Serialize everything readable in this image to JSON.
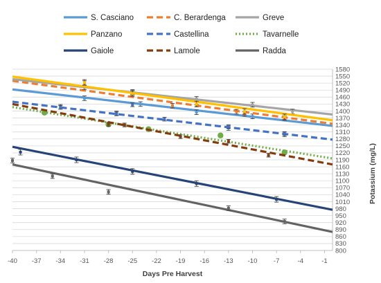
{
  "chart_data": {
    "type": "line",
    "xlabel": "Days Pre Harvest",
    "ylabel": "Potassium  (mg/L)",
    "xlim": [
      -40,
      0
    ],
    "ylim": [
      800,
      1580
    ],
    "x_ticks": [
      -40,
      -37,
      -34,
      -31,
      -28,
      -25,
      -22,
      -19,
      -16,
      -13,
      -10,
      -7,
      -4,
      -1
    ],
    "x_tick_labels": [
      "-40",
      "-37",
      "-34",
      "-31",
      "-28",
      "-25",
      "-22",
      "-19",
      "-16",
      "-13",
      "-10",
      "-7",
      "-4",
      "-1"
    ],
    "y_ticks": [
      800,
      830,
      860,
      890,
      920,
      950,
      980,
      1010,
      1040,
      1070,
      1100,
      1130,
      1160,
      1190,
      1220,
      1250,
      1280,
      1310,
      1340,
      1370,
      1400,
      1430,
      1460,
      1490,
      1520,
      1550,
      1580
    ],
    "y_tick_labels": [
      "800",
      "830",
      "860",
      "890",
      "920",
      "950",
      "980",
      "1010",
      "1040",
      "1070",
      "1100",
      "1130",
      "1160",
      "1190",
      "1220",
      "1250",
      "1280",
      "1310",
      "1340",
      "1370",
      "1400",
      "1430",
      "1460",
      "1490",
      "1520",
      "1550",
      "1580"
    ],
    "grid": "horizontal",
    "legend_position": "top",
    "series": [
      {
        "name": "S. Casciano",
        "color": "#5b9bd5",
        "dash": "solid",
        "line": [
          [
            -40,
            1493
          ],
          [
            0,
            1336
          ]
        ],
        "points": [
          [
            -34,
            1418
          ],
          [
            -31,
            1455
          ],
          [
            -27,
            1390
          ],
          [
            -24,
            1430
          ],
          [
            -17,
            1395
          ],
          [
            -13,
            1327
          ],
          [
            -10,
            1377
          ],
          [
            -6,
            1300
          ]
        ],
        "error": 10,
        "marker": "none"
      },
      {
        "name": "C. Berardenga",
        "color": "#ed7d31",
        "dash": "dash",
        "line": [
          [
            -40,
            1530
          ],
          [
            0,
            1345
          ]
        ],
        "points": [
          [
            -31,
            1502
          ],
          [
            -25,
            1478
          ],
          [
            -20,
            1423
          ],
          [
            -17,
            1437
          ],
          [
            -12,
            1397
          ],
          [
            -11,
            1388
          ],
          [
            -6,
            1370
          ]
        ],
        "error": 10,
        "marker": "none"
      },
      {
        "name": "Greve",
        "color": "#a5a5a5",
        "dash": "solid",
        "line": [
          [
            -40,
            1537
          ],
          [
            0,
            1385
          ]
        ],
        "points": [
          [
            -31,
            1520
          ],
          [
            -25,
            1482
          ],
          [
            -17,
            1452
          ],
          [
            -10,
            1427
          ],
          [
            -5,
            1398
          ]
        ],
        "error": 10,
        "marker": "none"
      },
      {
        "name": "Panzano",
        "color": "#ffc000",
        "dash": "solid",
        "line": [
          [
            -40,
            1548
          ],
          [
            0,
            1360
          ]
        ],
        "points": [
          [
            -31,
            1523
          ],
          [
            -25,
            1475
          ],
          [
            -17,
            1430
          ],
          [
            -11,
            1398
          ],
          [
            -6,
            1375
          ]
        ],
        "error": 12,
        "marker": "none"
      },
      {
        "name": "Castellina",
        "color": "#4472c4",
        "dash": "dash",
        "line": [
          [
            -40,
            1440
          ],
          [
            0,
            1277
          ]
        ],
        "points": [
          [
            -34,
            1416
          ],
          [
            -27,
            1388
          ],
          [
            -25,
            1427
          ],
          [
            -21,
            1365
          ],
          [
            -13,
            1333
          ],
          [
            -6,
            1303
          ]
        ],
        "error": 8,
        "marker": "none"
      },
      {
        "name": "Tavarnelle",
        "color": "#70ad47",
        "dash": "dot",
        "line": [
          [
            -40,
            1417
          ],
          [
            0,
            1196
          ]
        ],
        "points": [
          [
            -36,
            1393
          ],
          [
            -28,
            1342
          ],
          [
            -23,
            1322
          ],
          [
            -14,
            1295
          ],
          [
            -6,
            1222
          ]
        ],
        "error": 8,
        "marker": "circle"
      },
      {
        "name": "Gaiole",
        "color": "#264478",
        "dash": "solid",
        "line": [
          [
            -40,
            1246
          ],
          [
            0,
            975
          ]
        ],
        "points": [
          [
            -39,
            1223
          ],
          [
            -32,
            1190
          ],
          [
            -25,
            1140
          ],
          [
            -17,
            1088
          ],
          [
            -7,
            1020
          ]
        ],
        "error": 12,
        "marker": "none"
      },
      {
        "name": "Lamole",
        "color": "#843c0c",
        "dash": "dash",
        "line": [
          [
            -40,
            1430
          ],
          [
            0,
            1170
          ]
        ],
        "points": [
          [
            -28,
            1343
          ],
          [
            -26,
            1340
          ],
          [
            -19,
            1290
          ],
          [
            -13,
            1270
          ],
          [
            -8,
            1210
          ]
        ],
        "error": 8,
        "marker": "none"
      },
      {
        "name": "Radda",
        "color": "#636363",
        "dash": "solid",
        "line": [
          [
            -40,
            1170
          ],
          [
            0,
            880
          ]
        ],
        "points": [
          [
            -40,
            1187
          ],
          [
            -35,
            1120
          ],
          [
            -28,
            1052
          ],
          [
            -13,
            982
          ],
          [
            -6,
            925
          ]
        ],
        "error": 10,
        "marker": "none"
      }
    ]
  }
}
